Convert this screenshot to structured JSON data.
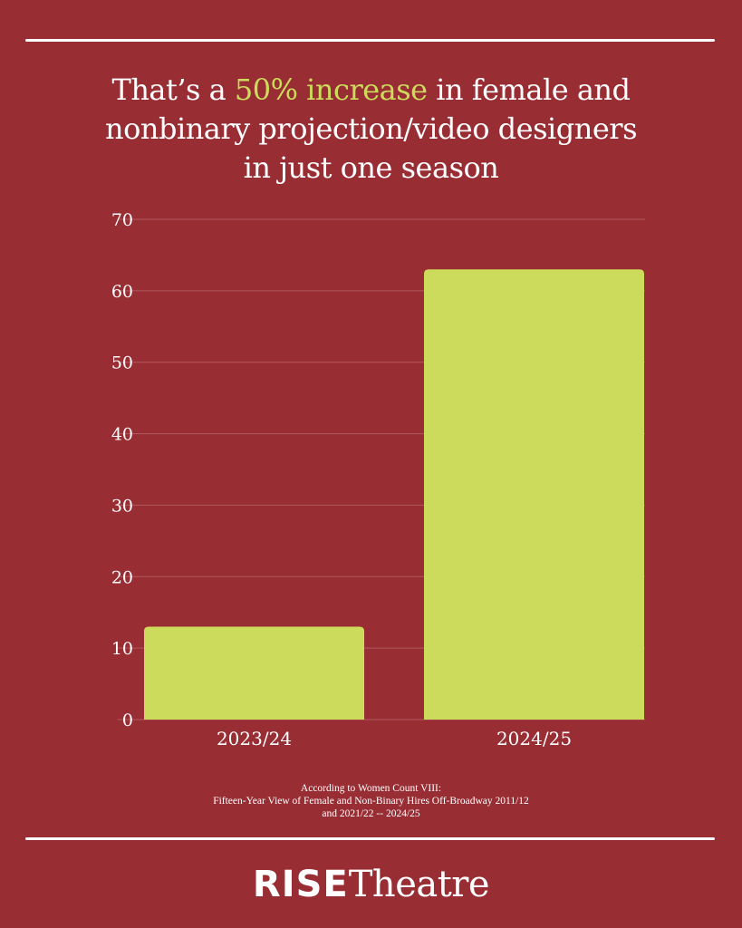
{
  "headline": {
    "prefix": "That’s a ",
    "highlight": "50% increase",
    "line1_suffix": " in female and",
    "line2": "nonbinary projection/video designers",
    "line3": "in just one season"
  },
  "colors": {
    "background": "#982d34",
    "bar": "#cddb5c",
    "highlight": "#cddb5c",
    "text": "#ffffff",
    "gridline": "#b05a5f"
  },
  "chart_data": {
    "type": "bar",
    "categories": [
      "2023/24",
      "2024/25"
    ],
    "values": [
      13,
      63
    ],
    "ylim": [
      0,
      70
    ],
    "yticks": [
      0,
      10,
      20,
      30,
      40,
      50,
      60,
      70
    ],
    "xlabel": "",
    "ylabel": "",
    "grid": true,
    "legend": "none"
  },
  "source": {
    "line1": "According to Women Count VIII:",
    "line2": "Fifteen-Year View of Female and Non-Binary Hires Off-Broadway 2011/12",
    "line3": "and 2021/22 -- 2024/25"
  },
  "logo": {
    "bold_part": "RISE",
    "light_part": "Theatre"
  }
}
